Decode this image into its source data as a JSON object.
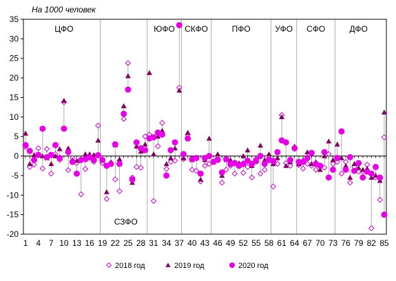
{
  "chart_data": {
    "type": "scatter",
    "subtitle": "На 1000 человек",
    "xlabel": "",
    "ylabel": "",
    "xlim": [
      0.5,
      85.5
    ],
    "ylim": [
      -20,
      35
    ],
    "y_ticks": [
      -20,
      -15,
      -10,
      -5,
      0,
      5,
      10,
      15,
      20,
      25,
      30,
      35
    ],
    "x_ticks": [
      1,
      4,
      7,
      10,
      13,
      16,
      19,
      22,
      25,
      28,
      31,
      34,
      37,
      40,
      43,
      46,
      49,
      52,
      55,
      58,
      61,
      64,
      67,
      70,
      73,
      76,
      79,
      82,
      85
    ],
    "grid": false,
    "legend_position": "bottom",
    "district_dividers": [
      18.5,
      29.5,
      37.5,
      44.5,
      58.5,
      64.5,
      73.5
    ],
    "district_labels": [
      {
        "label": "ЦФО",
        "x": 10,
        "y": 32.5
      },
      {
        "label": "СЗФО",
        "x": 24.5,
        "y": -16.8
      },
      {
        "label": "ЮФО",
        "x": 33.5,
        "y": 32.5
      },
      {
        "label": "СКФО",
        "x": 41,
        "y": 32.5
      },
      {
        "label": "ПФО",
        "x": 51.5,
        "y": 32.5
      },
      {
        "label": "УФО",
        "x": 61.5,
        "y": 32.5
      },
      {
        "label": "СФО",
        "x": 69,
        "y": 32.5
      },
      {
        "label": "ДФО",
        "x": 79,
        "y": 32.5
      }
    ],
    "colors": {
      "2018": "#cc00cc",
      "2019": "#800060",
      "2020": "#e600e6",
      "connector": "#999999"
    },
    "series": [
      {
        "name": "2018 год",
        "marker": "diamond-open",
        "values": [
          2.3,
          -2.8,
          -2.2,
          2.0,
          -3.2,
          1.8,
          -4.5,
          0.5,
          -1.0,
          13.8,
          -3.6,
          -0.5,
          -1.8,
          -9.8,
          -3.3,
          -0.5,
          -1.5,
          7.8,
          -1.8,
          -11.0,
          -1.8,
          -6.0,
          -9.0,
          9.5,
          23.8,
          -5.5,
          -2.8,
          -3.0,
          5.0,
          5.5,
          -11.5,
          2.5,
          8.5,
          -3.3,
          -1.5,
          -1.2,
          17.5,
          -0.8,
          5.5,
          -3.5,
          -3.8,
          -6.5,
          -2.5,
          -2.0,
          -1.5,
          -0.5,
          -6.8,
          -3.5,
          -2.5,
          -4.5,
          -2.3,
          -4.3,
          -2.8,
          -5.5,
          -1.5,
          -4.5,
          -3.5,
          -0.5,
          -7.8,
          -2.0,
          10.5,
          -1.8,
          -2.5,
          1.8,
          -2.3,
          -3.2,
          -2.0,
          -2.5,
          -3.5,
          -2.5,
          -3.0,
          0.5,
          -2.0,
          -1.5,
          -4.5,
          -1.5,
          -6.8,
          -2.8,
          -4.0,
          -4.0,
          -2.2,
          -18.5,
          -5.5,
          -11.2,
          4.8
        ]
      },
      {
        "name": "2019 год",
        "marker": "triangle",
        "values": [
          5.8,
          -2.0,
          0.3,
          0.2,
          0.0,
          -0.5,
          -2.0,
          0.0,
          1.8,
          14.2,
          2.0,
          -1.0,
          -1.2,
          -0.8,
          0.5,
          0.5,
          0.3,
          4.0,
          -1.2,
          -9.2,
          -1.5,
          2.8,
          -0.8,
          12.8,
          20.5,
          -6.8,
          2.5,
          1.2,
          3.0,
          21.3,
          0.5,
          5.0,
          6.5,
          -2.0,
          -0.5,
          2.0,
          16.8,
          -0.5,
          6.0,
          -1.0,
          -0.5,
          -6.0,
          -1.0,
          4.5,
          -1.5,
          0.5,
          -5.0,
          -1.0,
          -1.0,
          -1.5,
          -1.8,
          0.0,
          1.5,
          -2.5,
          -1.3,
          2.7,
          -1.0,
          0.5,
          -2.0,
          -0.5,
          10.0,
          -2.5,
          -1.5,
          2.5,
          -2.0,
          -1.0,
          1.0,
          -2.0,
          -1.5,
          -3.5,
          0.0,
          3.8,
          -1.0,
          3.0,
          -0.5,
          -2.5,
          -5.5,
          -2.0,
          -3.0,
          -3.5,
          -3.2,
          -5.5,
          -5.0,
          -6.3,
          11.2
        ]
      },
      {
        "name": "2020 год",
        "marker": "circle",
        "values": [
          2.8,
          1.3,
          -1.0,
          0.3,
          7.0,
          -0.3,
          0.3,
          2.8,
          -0.5,
          7.0,
          1.0,
          -1.5,
          -4.5,
          -1.0,
          -0.8,
          -0.3,
          -1.0,
          0.2,
          -1.0,
          -2.5,
          -2.0,
          3.0,
          -2.0,
          10.8,
          17.0,
          -6.0,
          3.5,
          2.0,
          1.5,
          4.5,
          4.8,
          6.0,
          5.5,
          -5.0,
          1.5,
          3.5,
          33.5,
          0.5,
          4.5,
          -0.8,
          -0.5,
          -4.5,
          -0.5,
          0.0,
          -1.5,
          -1.0,
          -4.2,
          -0.8,
          -2.0,
          -1.8,
          -2.5,
          -2.0,
          -1.2,
          -2.0,
          -1.0,
          0.0,
          -2.0,
          -1.0,
          -1.3,
          1.0,
          4.0,
          3.5,
          -1.0,
          2.0,
          -1.5,
          -1.5,
          -0.5,
          0.8,
          -2.0,
          -2.5,
          1.0,
          -5.5,
          -3.5,
          -0.5,
          6.3,
          -3.5,
          -0.3,
          -3.8,
          -1.8,
          -5.5,
          -4.0,
          -4.5,
          -2.8,
          -5.5,
          -15.0
        ]
      }
    ]
  }
}
